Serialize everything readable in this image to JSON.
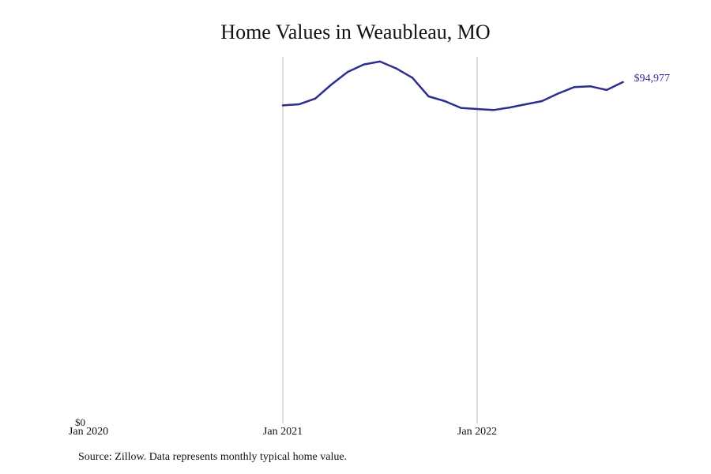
{
  "chart_data": {
    "type": "line",
    "title": "Home Values in Weaubleau, MO",
    "source_note": "Source: Zillow. Data represents monthly typical home value.",
    "y_zero_label": "$0",
    "end_label": "$94,977",
    "x_ticks": [
      "Jan 2020",
      "Jan 2021",
      "Jan 2022"
    ],
    "ylim": [
      0,
      102000
    ],
    "grid": "vertical lines at Jan 2021 and Jan 2022",
    "colors": {
      "line": "#2e2e8f",
      "grid": "#bdbdbd"
    },
    "series": [
      {
        "x": [
          "2021-01",
          "2021-02",
          "2021-03",
          "2021-04",
          "2021-05",
          "2021-06",
          "2021-07",
          "2021-08",
          "2021-09",
          "2021-10",
          "2021-11",
          "2021-12",
          "2022-01",
          "2022-02",
          "2022-03",
          "2022-04",
          "2022-05",
          "2022-06",
          "2022-07",
          "2022-08",
          "2022-09",
          "2022-10"
        ],
        "values": [
          88500,
          88800,
          90400,
          94300,
          97800,
          99900,
          100700,
          98800,
          96200,
          91000,
          89700,
          87800,
          87500,
          87200,
          87900,
          88800,
          89700,
          91800,
          93600,
          93800,
          92800,
          94977
        ]
      }
    ]
  }
}
